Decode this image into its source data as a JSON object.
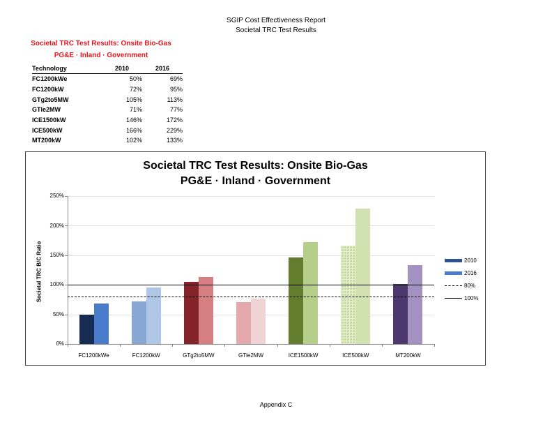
{
  "header": {
    "line1": "SGIP Cost Effectiveness Report",
    "line2": "Societal TRC Test Results"
  },
  "summary": {
    "title1": "Societal TRC Test Results:  Onsite Bio-Gas",
    "title2": "PG&E · Inland · Government",
    "columns": [
      "Technology",
      "2010",
      "2016"
    ],
    "rows": [
      [
        "FC1200kWe",
        "50%",
        "69%"
      ],
      [
        "FC1200kW",
        "72%",
        "95%"
      ],
      [
        "GTg2to5MW",
        "105%",
        "113%"
      ],
      [
        "GTle2MW",
        "71%",
        "77%"
      ],
      [
        "ICE1500kW",
        "146%",
        "172%"
      ],
      [
        "ICE500kW",
        "166%",
        "229%"
      ],
      [
        "MT200kW",
        "102%",
        "133%"
      ]
    ]
  },
  "chart": {
    "title1": "Societal TRC Test Results:  Onsite Bio-Gas",
    "title2": "PG&E · Inland · Government",
    "ylabel": "Societal TRC B/C Ratio",
    "yticks": [
      "0%",
      "50%",
      "100%",
      "150%",
      "200%",
      "250%"
    ],
    "legend": [
      "2010",
      "2016",
      "80%",
      "100%"
    ],
    "colors": {
      "FC1200kWe": [
        "#172c52",
        "#4a7ccc"
      ],
      "FC1200kW": [
        "#88a6d2",
        "#b0c6e6"
      ],
      "GTg2to5MW": [
        "#85232a",
        "#d67f83"
      ],
      "GTle2MW": [
        "#e3a9ac",
        "#f0d3d4"
      ],
      "ICE1500kW": [
        "#627d2e",
        "#b5cf8a"
      ],
      "ICE500kW": [
        "#c7dca3",
        "#d0e2b0"
      ],
      "MT200kW": [
        "#4d386e",
        "#a391c1"
      ],
      "legend_2010": "#2f5390",
      "legend_2016": "#4a7ccc"
    }
  },
  "chart_data": {
    "type": "bar",
    "title": "Societal TRC Test Results:  Onsite Bio-Gas — PG&E · Inland · Government",
    "categories": [
      "FC1200kWe",
      "FC1200kW",
      "GTg2to5MW",
      "GTle2MW",
      "ICE1500kW",
      "ICE500kW",
      "MT200kW"
    ],
    "series": [
      {
        "name": "2010",
        "values": [
          50,
          72,
          105,
          71,
          146,
          166,
          102
        ]
      },
      {
        "name": "2016",
        "values": [
          69,
          95,
          113,
          77,
          172,
          229,
          133
        ]
      }
    ],
    "reference_lines": [
      {
        "name": "80%",
        "value": 80,
        "style": "dashed"
      },
      {
        "name": "100%",
        "value": 100,
        "style": "solid"
      }
    ],
    "xlabel": "",
    "ylabel": "Societal TRC B/C Ratio",
    "ylim": [
      0,
      250
    ],
    "yticks": [
      0,
      50,
      100,
      150,
      200,
      250
    ],
    "unit": "%",
    "grid": true,
    "legend_position": "right"
  },
  "footer": "Appendix C"
}
